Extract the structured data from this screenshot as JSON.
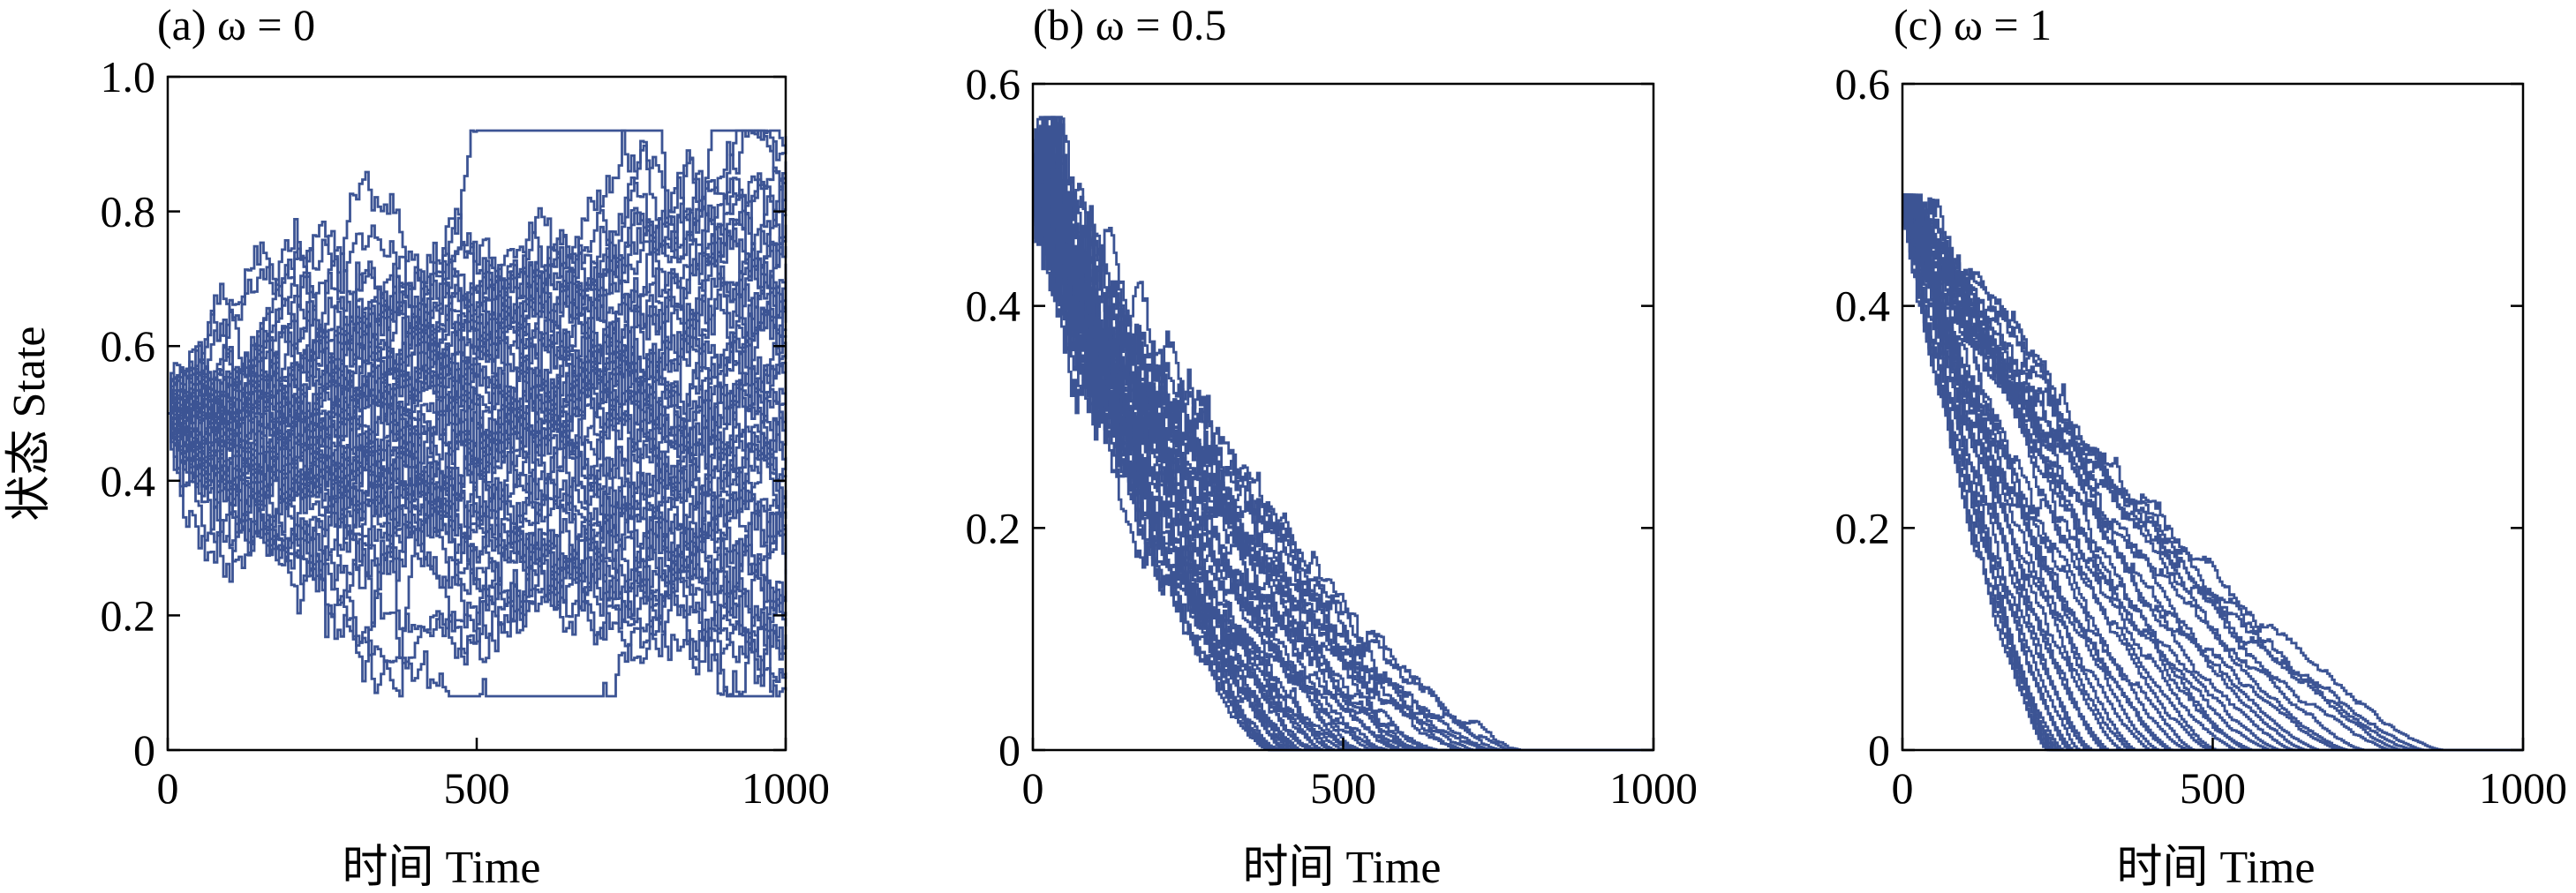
{
  "figure": {
    "line_color": "#3c5494"
  },
  "chart_data": [
    {
      "type": "line",
      "panel_label": "(a)",
      "title": "(a) ω = 0",
      "omega": 0,
      "xlabel": "时间 Time",
      "ylabel": "状态 State",
      "xlim": [
        0,
        1000
      ],
      "ylim": [
        0,
        1.0
      ],
      "xticks": [
        0,
        500,
        1000
      ],
      "xtick_labels": [
        "0",
        "500",
        "1000"
      ],
      "yticks": [
        0,
        0.2,
        0.4,
        0.6,
        0.8,
        1.0
      ],
      "ytick_labels": [
        "0",
        "0.2",
        "0.4",
        "0.6",
        "0.8",
        "1.0"
      ],
      "grid": false,
      "series_count": 50,
      "initial_state": 0.5,
      "final_state_range": [
        0.08,
        0.92
      ],
      "max_state": 0.92,
      "min_state": 0.08,
      "mean_trend": "flat around 0.5, spreading over time"
    },
    {
      "type": "line",
      "panel_label": "(b)",
      "title": "(b) ω = 0.5",
      "omega": 0.5,
      "xlabel": "时间 Time",
      "ylabel": "",
      "xlim": [
        0,
        1000
      ],
      "ylim": [
        0,
        0.6
      ],
      "xticks": [
        0,
        500,
        1000
      ],
      "xtick_labels": [
        "0",
        "500",
        "1000"
      ],
      "yticks": [
        0,
        0.2,
        0.4,
        0.6
      ],
      "ytick_labels": [
        "0",
        "0.2",
        "0.4",
        "0.6"
      ],
      "grid": false,
      "series_count": 40,
      "initial_state": 0.5,
      "max_state": 0.57,
      "final_state": 0,
      "absorption_time_range": [
        380,
        790
      ],
      "mean_trend": "decay to 0"
    },
    {
      "type": "line",
      "panel_label": "(c)",
      "title": "(c) ω = 1",
      "omega": 1,
      "xlabel": "时间 Time",
      "ylabel": "",
      "xlim": [
        0,
        1000
      ],
      "ylim": [
        0,
        0.6
      ],
      "xticks": [
        0,
        500,
        1000
      ],
      "xtick_labels": [
        "0",
        "500",
        "1000"
      ],
      "yticks": [
        0,
        0.2,
        0.4,
        0.6
      ],
      "ytick_labels": [
        "0",
        "0.2",
        "0.4",
        "0.6"
      ],
      "grid": false,
      "series_count": 40,
      "initial_state": 0.5,
      "max_state": 0.5,
      "final_state": 0,
      "absorption_time_range": [
        230,
        890
      ],
      "mean_trend": "fast decay to 0"
    }
  ]
}
